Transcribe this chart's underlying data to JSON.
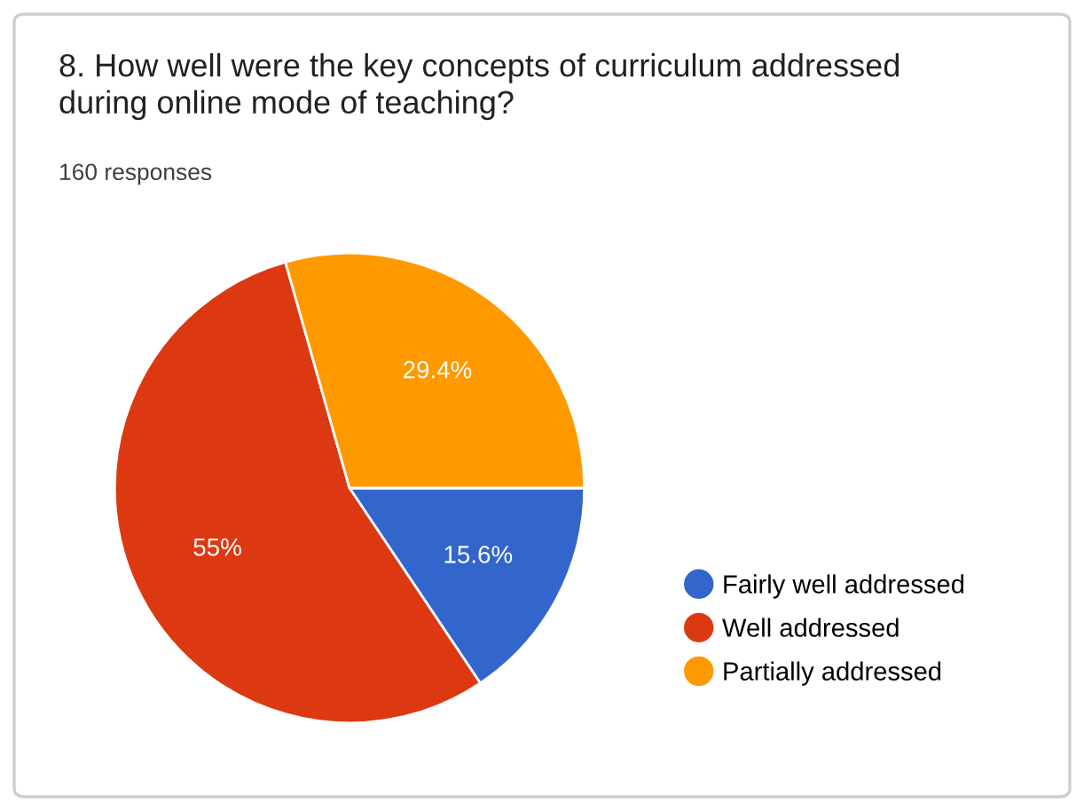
{
  "chart_data": {
    "type": "pie",
    "title": "8. How well were the key concepts of curriculum addressed during online mode of teaching?",
    "subtitle": "160 responses",
    "categories": [
      "Fairly well addressed",
      "Well addressed",
      "Partially addressed"
    ],
    "values": [
      15.6,
      55,
      29.4
    ],
    "colors": [
      "#3366cc",
      "#dc3912",
      "#ff9900"
    ],
    "value_labels": [
      "15.6%",
      "55%",
      "29.4%"
    ],
    "legend": "right"
  }
}
